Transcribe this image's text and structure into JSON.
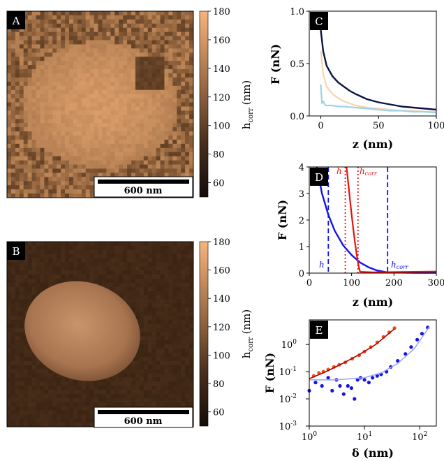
{
  "figure": {
    "panel_labels": [
      "A",
      "B",
      "C",
      "D",
      "E"
    ],
    "scale_bar_text": "600 nm",
    "colorbar_label": "h",
    "colorbar_label_sub": "corr",
    "colorbar_unit": "(nm)",
    "colorbar_ticks": [
      "180",
      "160",
      "140",
      "120",
      "100",
      "80",
      "60"
    ],
    "colors": {
      "afm_dark": "#1e140c",
      "afm_light": "#f6b27a",
      "navy": "#0c1446",
      "light_blue": "#9fd4e6",
      "peach": "#f8d4b0",
      "red": "#e8120e",
      "dark_red": "#b00000",
      "blue": "#1414e6",
      "orange_red": "#f05020"
    }
  },
  "chart_data": [
    {
      "panel": "A",
      "type": "heatmap",
      "description_colorbar": "h_corr (nm)",
      "zlim": [
        50,
        180
      ],
      "colorbar_ticks": [
        60,
        80,
        100,
        120,
        140,
        160,
        180
      ],
      "scale_bar": "600 nm"
    },
    {
      "panel": "B",
      "type": "heatmap",
      "zlim": [
        50,
        180
      ],
      "colorbar_ticks": [
        60,
        80,
        100,
        120,
        140,
        160,
        180
      ],
      "scale_bar": "600 nm"
    },
    {
      "panel": "C",
      "type": "line",
      "xlabel": "z (nm)",
      "ylabel": "F (nN)",
      "xlim": [
        -10,
        100
      ],
      "ylim": [
        0,
        1.0
      ],
      "xticks": [
        0,
        50,
        100
      ],
      "yticks": [
        "0.0",
        "0.5",
        "1.0"
      ],
      "series": [
        {
          "color": "#0c1446",
          "x": [
            0,
            2,
            5,
            10,
            15,
            20,
            25,
            30,
            40,
            50,
            60,
            70,
            80,
            90,
            100
          ],
          "y": [
            0.82,
            0.62,
            0.48,
            0.38,
            0.32,
            0.28,
            0.24,
            0.21,
            0.16,
            0.13,
            0.11,
            0.09,
            0.08,
            0.07,
            0.06
          ]
        },
        {
          "color": "#f8d4b0",
          "x": [
            0,
            2,
            5,
            10,
            15,
            20,
            25,
            30,
            40,
            50,
            60,
            70,
            80,
            90,
            100
          ],
          "y": [
            0.62,
            0.4,
            0.28,
            0.21,
            0.17,
            0.14,
            0.12,
            0.1,
            0.08,
            0.07,
            0.06,
            0.05,
            0.05,
            0.04,
            0.04
          ]
        },
        {
          "color": "#9fd4e6",
          "x": [
            0,
            1,
            2,
            4,
            6,
            10,
            15,
            20,
            30,
            40,
            50,
            60,
            70,
            80,
            90,
            100
          ],
          "y": [
            0.3,
            0.12,
            0.14,
            0.1,
            0.1,
            0.1,
            0.09,
            0.09,
            0.08,
            0.07,
            0.06,
            0.05,
            0.05,
            0.04,
            0.04,
            0.03
          ]
        }
      ]
    },
    {
      "panel": "D",
      "type": "line",
      "xlabel": "z (nm)",
      "ylabel": "F (nN)",
      "xlim": [
        0,
        300
      ],
      "ylim": [
        0,
        4
      ],
      "xticks": [
        0,
        100,
        200,
        300
      ],
      "yticks": [
        0,
        1,
        2,
        3,
        4
      ],
      "annotations": {
        "red_h": "h",
        "red_hcorr": "h",
        "red_hcorr_sub": "corr",
        "blue_h": "h",
        "blue_hcorr": "h",
        "blue_hcorr_sub": "corr"
      },
      "vlines": [
        {
          "x": 45,
          "color": "#1414e6",
          "style": "dashed"
        },
        {
          "x": 185,
          "color": "#1414e6",
          "style": "dashed"
        },
        {
          "x": 85,
          "color": "#e8120e",
          "style": "dotted"
        },
        {
          "x": 115,
          "color": "#e8120e",
          "style": "dotted"
        }
      ],
      "series": [
        {
          "color": "#1414e6",
          "x": [
            18,
            30,
            45,
            60,
            80,
            100,
            120,
            140,
            160,
            185,
            200,
            250,
            300
          ],
          "y": [
            4.0,
            3.0,
            2.2,
            1.6,
            1.05,
            0.68,
            0.4,
            0.22,
            0.1,
            0.03,
            0.02,
            0.01,
            0.01
          ]
        },
        {
          "color": "#e8120e",
          "x": [
            88,
            92,
            96,
            100,
            104,
            108,
            112,
            116,
            120,
            150,
            200,
            250,
            300
          ],
          "y": [
            4.0,
            3.4,
            2.8,
            2.2,
            1.65,
            1.15,
            0.7,
            0.3,
            0.05,
            0.03,
            0.04,
            0.05,
            0.06
          ]
        }
      ]
    },
    {
      "panel": "E",
      "type": "scatter",
      "xlabel": "δ (nm)",
      "ylabel": "F (nN)",
      "xscale": "log",
      "yscale": "log",
      "xlim": [
        1,
        200
      ],
      "ylim": [
        0.001,
        8
      ],
      "xtick_labels": [
        "10^0",
        "10^1",
        "10^2"
      ],
      "ytick_labels": [
        "10^-3",
        "10^-2",
        "10^-1",
        "10^0"
      ],
      "series": [
        {
          "color": "#f05020",
          "kind": "points",
          "x": [
            1.2,
            1.5,
            1.8,
            2.2,
            2.8,
            3.5,
            4.5,
            6,
            8,
            10,
            13,
            17,
            22,
            28,
            35
          ],
          "y": [
            0.07,
            0.09,
            0.1,
            0.12,
            0.15,
            0.18,
            0.22,
            0.3,
            0.4,
            0.55,
            0.8,
            1.2,
            1.9,
            2.8,
            4.0
          ]
        },
        {
          "color": "#b00000",
          "kind": "fit",
          "x": [
            1,
            2,
            4,
            8,
            16,
            35
          ],
          "y": [
            0.055,
            0.1,
            0.2,
            0.42,
            1.0,
            3.8
          ]
        },
        {
          "color": "#1414e6",
          "kind": "points",
          "x": [
            1.0,
            1.3,
            1.7,
            2.2,
            2.6,
            3.1,
            3.6,
            4.2,
            5.0,
            5.8,
            6.6,
            7.5,
            8.5,
            10,
            12,
            14,
            17,
            20,
            25,
            30,
            40,
            55,
            70,
            90,
            110,
            140
          ],
          "y": [
            0.02,
            0.04,
            0.03,
            0.06,
            0.02,
            0.05,
            0.03,
            0.015,
            0.03,
            0.025,
            0.01,
            0.05,
            0.06,
            0.05,
            0.04,
            0.06,
            0.07,
            0.08,
            0.1,
            0.15,
            0.25,
            0.45,
            0.8,
            1.5,
            2.5,
            4.2
          ]
        },
        {
          "color": "#9fa6ff",
          "kind": "fit",
          "x": [
            1,
            3,
            10,
            20,
            40,
            80,
            150
          ],
          "y": [
            0.05,
            0.05,
            0.06,
            0.09,
            0.2,
            0.7,
            4.5
          ]
        }
      ]
    }
  ]
}
